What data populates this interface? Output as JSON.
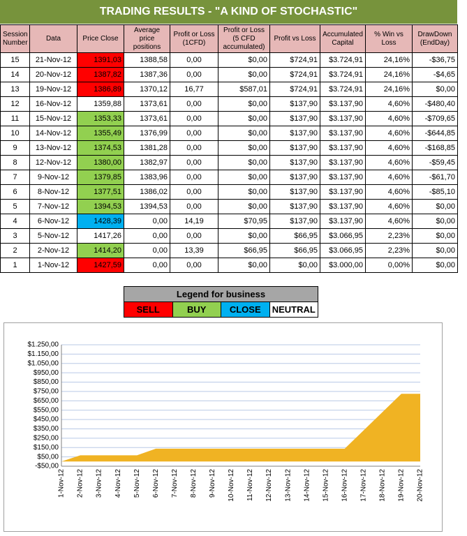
{
  "header": {
    "title": "TRADING RESULTS - \"A KIND OF STOCHASTIC\""
  },
  "table": {
    "columns": [
      "Session Number",
      "Data",
      "Price Close",
      "Average price positions",
      "Profit or Loss (1CFD)",
      "Profit or Loss (5 CFD accumulated)",
      "Profit vs Loss",
      "Accumulated Capital",
      "% Win vs Loss",
      "DrawDown (EndDay)"
    ],
    "rows": [
      [
        "15",
        "21-Nov-12",
        "1391,03",
        "1388,58",
        "0,00",
        "$0,00",
        "$724,91",
        "$3.724,91",
        "24,16%",
        "-$36,75"
      ],
      [
        "14",
        "20-Nov-12",
        "1387,82",
        "1387,36",
        "0,00",
        "$0,00",
        "$724,91",
        "$3.724,91",
        "24,16%",
        "-$4,65"
      ],
      [
        "13",
        "19-Nov-12",
        "1386,89",
        "1370,12",
        "16,77",
        "$587,01",
        "$724,91",
        "$3.724,91",
        "24,16%",
        "$0,00"
      ],
      [
        "12",
        "16-Nov-12",
        "1359,88",
        "1373,61",
        "0,00",
        "$0,00",
        "$137,90",
        "$3.137,90",
        "4,60%",
        "-$480,40"
      ],
      [
        "11",
        "15-Nov-12",
        "1353,33",
        "1373,61",
        "0,00",
        "$0,00",
        "$137,90",
        "$3.137,90",
        "4,60%",
        "-$709,65"
      ],
      [
        "10",
        "14-Nov-12",
        "1355,49",
        "1376,99",
        "0,00",
        "$0,00",
        "$137,90",
        "$3.137,90",
        "4,60%",
        "-$644,85"
      ],
      [
        "9",
        "13-Nov-12",
        "1374,53",
        "1381,28",
        "0,00",
        "$0,00",
        "$137,90",
        "$3.137,90",
        "4,60%",
        "-$168,85"
      ],
      [
        "8",
        "12-Nov-12",
        "1380,00",
        "1382,97",
        "0,00",
        "$0,00",
        "$137,90",
        "$3.137,90",
        "4,60%",
        "-$59,45"
      ],
      [
        "7",
        "9-Nov-12",
        "1379,85",
        "1383,96",
        "0,00",
        "$0,00",
        "$137,90",
        "$3.137,90",
        "4,60%",
        "-$61,70"
      ],
      [
        "6",
        "8-Nov-12",
        "1377,51",
        "1386,02",
        "0,00",
        "$0,00",
        "$137,90",
        "$3.137,90",
        "4,60%",
        "-$85,10"
      ],
      [
        "5",
        "7-Nov-12",
        "1394,53",
        "1394,53",
        "0,00",
        "$0,00",
        "$137,90",
        "$3.137,90",
        "4,60%",
        "$0,00"
      ],
      [
        "4",
        "6-Nov-12",
        "1428,39",
        "0,00",
        "14,19",
        "$70,95",
        "$137,90",
        "$3.137,90",
        "4,60%",
        "$0,00"
      ],
      [
        "3",
        "5-Nov-12",
        "1417,26",
        "0,00",
        "0,00",
        "$0,00",
        "$66,95",
        "$3.066,95",
        "2,23%",
        "$0,00"
      ],
      [
        "2",
        "2-Nov-12",
        "1414,20",
        "0,00",
        "13,39",
        "$66,95",
        "$66,95",
        "$3.066,95",
        "2,23%",
        "$0,00"
      ],
      [
        "1",
        "1-Nov-12",
        "1427,59",
        "0,00",
        "0,00",
        "$0,00",
        "$0,00",
        "$3.000,00",
        "0,00%",
        "$0,00"
      ]
    ],
    "price_close_colors": [
      "#ff0000",
      "#ff0000",
      "#ff0000",
      null,
      "#92d050",
      "#92d050",
      "#92d050",
      "#92d050",
      "#92d050",
      "#92d050",
      "#92d050",
      "#00b0f0",
      null,
      "#92d050",
      "#ff0000"
    ]
  },
  "legend": {
    "title": "Legend for business",
    "items": [
      {
        "label": "SELL",
        "color": "#ff0000"
      },
      {
        "label": "BUY",
        "color": "#92d050"
      },
      {
        "label": "CLOSE",
        "color": "#00b0f0"
      },
      {
        "label": "NEUTRAL",
        "color": "#ffffff"
      }
    ]
  },
  "chart_data": {
    "type": "area",
    "categories": [
      "1-Nov-12",
      "2-Nov-12",
      "3-Nov-12",
      "4-Nov-12",
      "5-Nov-12",
      "6-Nov-12",
      "7-Nov-12",
      "8-Nov-12",
      "9-Nov-12",
      "10-Nov-12",
      "11-Nov-12",
      "12-Nov-12",
      "13-Nov-12",
      "14-Nov-12",
      "15-Nov-12",
      "16-Nov-12",
      "17-Nov-12",
      "18-Nov-12",
      "19-Nov-12",
      "20-Nov-12"
    ],
    "x": [
      "1-Nov-12",
      "2-Nov-12",
      "5-Nov-12",
      "6-Nov-12",
      "7-Nov-12",
      "8-Nov-12",
      "9-Nov-12",
      "12-Nov-12",
      "13-Nov-12",
      "14-Nov-12",
      "15-Nov-12",
      "16-Nov-12",
      "19-Nov-12",
      "20-Nov-12"
    ],
    "values": [
      0,
      66.95,
      66.95,
      137.9,
      137.9,
      137.9,
      137.9,
      137.9,
      137.9,
      137.9,
      137.9,
      137.9,
      724.91,
      724.91
    ],
    "color": "#f0b323",
    "ylim": [
      -50,
      1250
    ],
    "yticks": [
      {
        "value": -50,
        "label": "-$50,00"
      },
      {
        "value": 50,
        "label": "$50,00"
      },
      {
        "value": 150,
        "label": "$150,00"
      },
      {
        "value": 250,
        "label": "$250,00"
      },
      {
        "value": 350,
        "label": "$350,00"
      },
      {
        "value": 450,
        "label": "$450,00"
      },
      {
        "value": 550,
        "label": "$550,00"
      },
      {
        "value": 650,
        "label": "$650,00"
      },
      {
        "value": 750,
        "label": "$750,00"
      },
      {
        "value": 850,
        "label": "$850,00"
      },
      {
        "value": 950,
        "label": "$950,00"
      },
      {
        "value": 1050,
        "label": "$1.050,00"
      },
      {
        "value": 1150,
        "label": "$1.150,00"
      },
      {
        "value": 1250,
        "label": "$1.250,00"
      }
    ],
    "grid": true
  }
}
